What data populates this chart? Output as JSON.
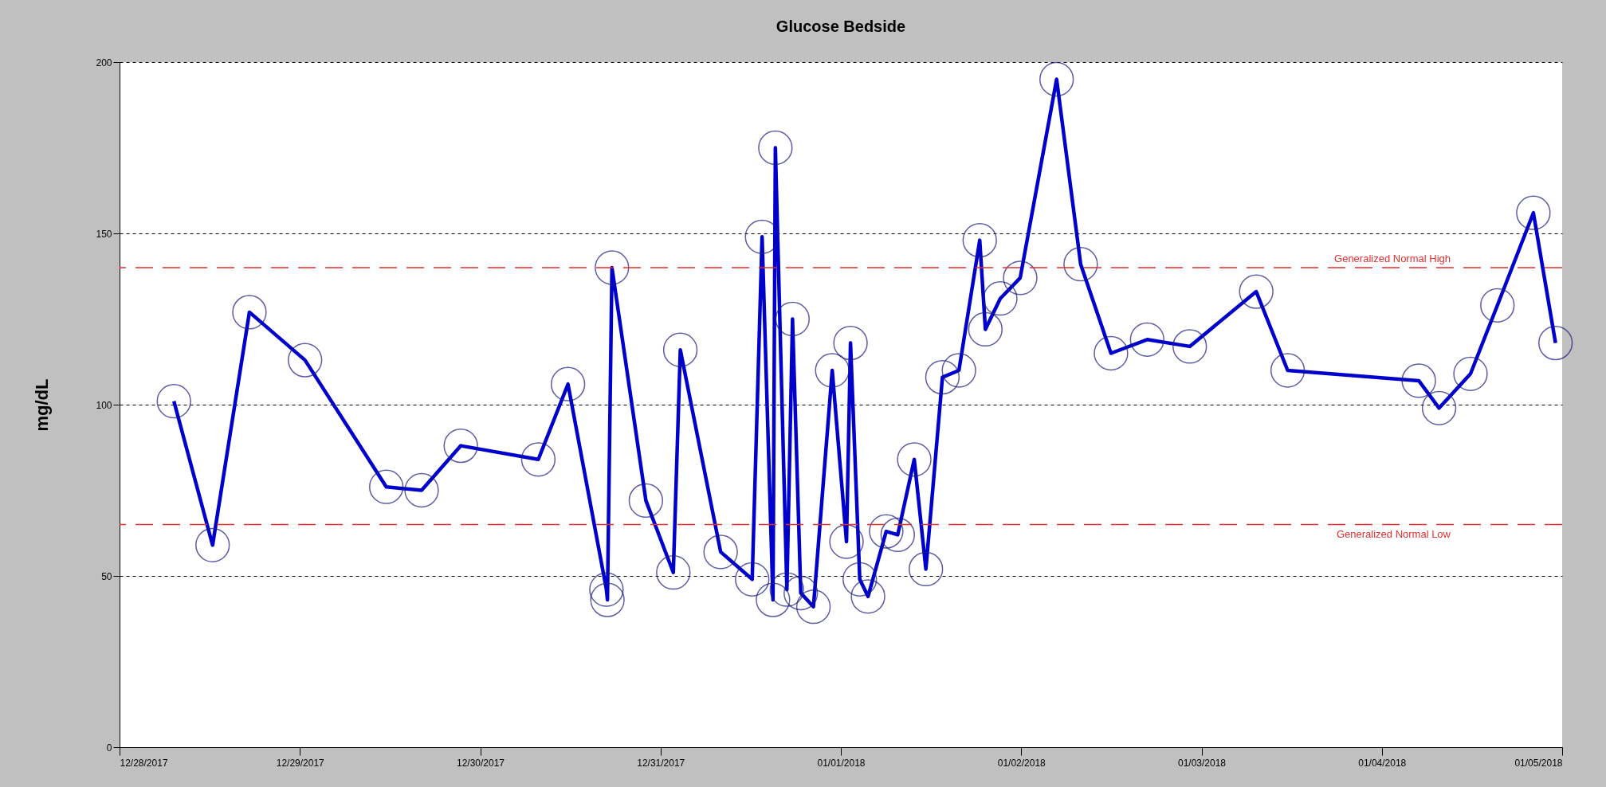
{
  "chart_data": {
    "type": "line",
    "title": "Glucose Bedside",
    "ylabel": "mg/dL",
    "x": [
      "2017-12-28T07:14",
      "2017-12-28T12:23",
      "2017-12-28T17:17",
      "2017-12-29T00:41",
      "2017-12-29T11:30",
      "2017-12-29T16:12",
      "2017-12-29T21:25",
      "2017-12-30T07:44",
      "2017-12-30T11:41",
      "2017-12-30T16:48",
      "2017-12-30T16:56",
      "2017-12-30T17:32",
      "2017-12-30T22:03",
      "2017-12-31T01:42",
      "2017-12-31T02:38",
      "2017-12-31T08:00",
      "2017-12-31T12:12",
      "2017-12-31T13:31",
      "2017-12-31T14:58",
      "2017-12-31T15:17",
      "2017-12-31T16:49",
      "2017-12-31T17:34",
      "2017-12-31T18:40",
      "2017-12-31T20:21",
      "2017-12-31T22:51",
      "2018-01-01T00:45",
      "2018-01-01T01:17",
      "2018-01-01T02:31",
      "2018-01-01T03:37",
      "2018-01-01T06:02",
      "2018-01-01T07:34",
      "2018-01-01T09:46",
      "2018-01-01T11:19",
      "2018-01-01T13:31",
      "2018-01-01T15:43",
      "2018-01-01T18:29",
      "2018-01-01T19:14",
      "2018-01-01T21:13",
      "2018-01-01T23:52",
      "2018-01-02T04:43",
      "2018-01-02T07:55",
      "2018-01-02T11:57",
      "2018-01-02T16:46",
      "2018-01-02T22:26",
      "2018-01-03T07:17",
      "2018-01-03T11:28",
      "2018-01-04T04:55",
      "2018-01-04T07:37",
      "2018-01-04T11:48",
      "2018-01-04T15:23",
      "2018-01-04T20:10",
      "2018-01-04T23:07"
    ],
    "series": [
      {
        "color": "#0000cc",
        "values": [
          101,
          59,
          127,
          113,
          76,
          75,
          88,
          84,
          106,
          46,
          43,
          140,
          72,
          51,
          116,
          57,
          49,
          149,
          43,
          175,
          46,
          125,
          45,
          41,
          110,
          60,
          118,
          49,
          44,
          63,
          62,
          84,
          52,
          108,
          110,
          148,
          122,
          131,
          137,
          195,
          141,
          115,
          119,
          117,
          133,
          110,
          107,
          99,
          109,
          129,
          156,
          118
        ]
      }
    ],
    "xlim": [
      "2017-12-28",
      "2018-01-05"
    ],
    "xticks": [
      {
        "value": "2017-12-28",
        "label": "12/28/2017"
      },
      {
        "value": "2017-12-29",
        "label": "12/29/2017"
      },
      {
        "value": "2017-12-30",
        "label": "12/30/2017"
      },
      {
        "value": "2017-12-31",
        "label": "12/31/2017"
      },
      {
        "value": "2018-01-01",
        "label": "01/01/2018"
      },
      {
        "value": "2018-01-02",
        "label": "01/02/2018"
      },
      {
        "value": "2018-01-03",
        "label": "01/03/2018"
      },
      {
        "value": "2018-01-04",
        "label": "01/04/2018"
      },
      {
        "value": "2018-01-05",
        "label": "01/05/2018"
      }
    ],
    "ylim": [
      0,
      200
    ],
    "yticks": [
      0,
      50,
      100,
      150,
      200
    ],
    "ref_lines": [
      {
        "axis": "y",
        "value": 140,
        "label": "Generalized Normal High",
        "color": "#e03030",
        "line_style": "dashed"
      },
      {
        "axis": "y",
        "value": 65,
        "label": "Generalized Normal Low",
        "color": "#e03030",
        "line_style": "dashed"
      }
    ],
    "grid": "y",
    "marker": "circle",
    "line_style": "solid",
    "legend": false
  }
}
